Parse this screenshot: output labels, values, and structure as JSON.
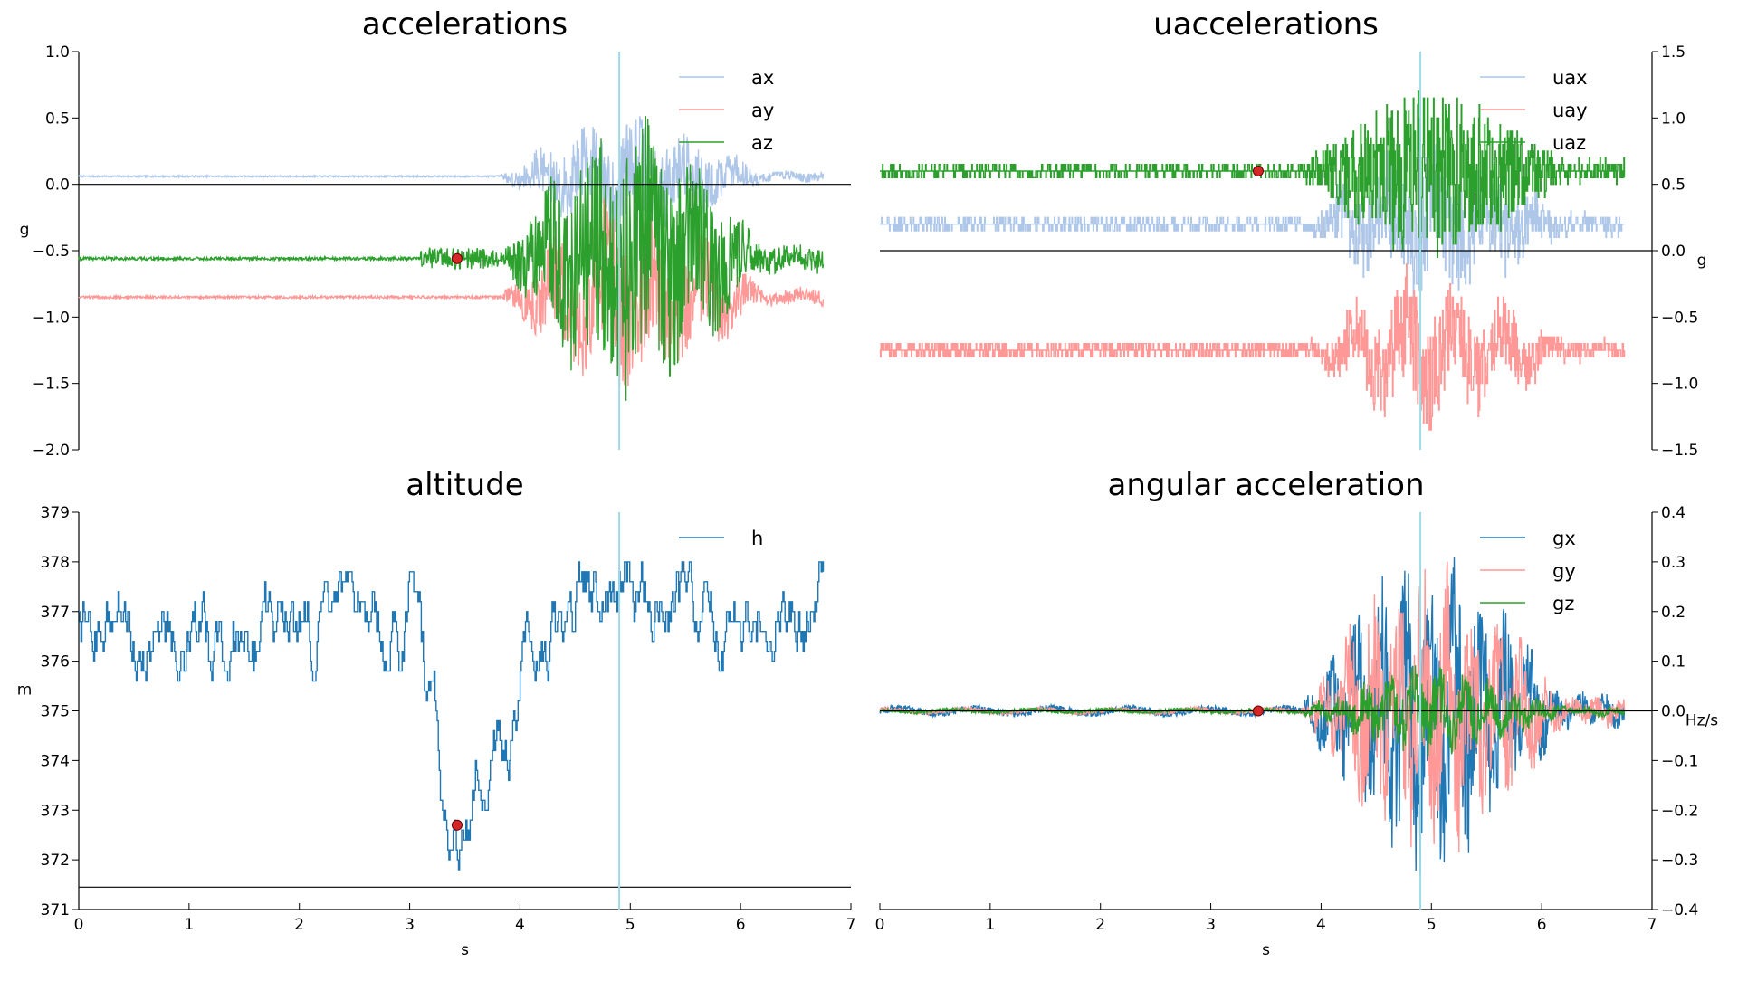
{
  "chart_data": [
    {
      "type": "line",
      "title": "accelerations",
      "xlabel": "",
      "ylabel": "g",
      "xlim": [
        0,
        7
      ],
      "ylim": [
        -2.0,
        1.0
      ],
      "yticks": [
        "1.0",
        "0.5",
        "0.0",
        "−0.5",
        "−1.0",
        "−1.5",
        "−2.0"
      ],
      "ytick_values": [
        1.0,
        0.5,
        0.0,
        -0.5,
        -1.0,
        -1.5,
        -2.0
      ],
      "show_xticklabels": false,
      "y_axis_side": "left",
      "legend": "top-right",
      "marker_point": {
        "x": 3.43,
        "y": -0.56
      },
      "vline_x": 4.9,
      "hline_y": 0.0,
      "series": [
        {
          "name": "ax",
          "color": "#aec7e8",
          "base": 0.06,
          "quiet_noise": 0.006,
          "active_amp": 0.35,
          "active_offset": 0.15
        },
        {
          "name": "ay",
          "color": "#ff9896",
          "base": -0.85,
          "quiet_noise": 0.01,
          "active_amp": 0.55,
          "active_offset": -0.25
        },
        {
          "name": "az",
          "color": "#2ca02c",
          "base": -0.56,
          "quiet_noise": 0.012,
          "active_amp": 0.9,
          "active_offset": -0.25
        }
      ]
    },
    {
      "type": "line",
      "title": "uaccelerations",
      "xlabel": "",
      "ylabel": "g",
      "xlim": [
        0,
        7
      ],
      "ylim": [
        -1.5,
        1.5
      ],
      "yticks": [
        "1.5",
        "1.0",
        "0.5",
        "0.0",
        "−0.5",
        "−1.0",
        "−1.5"
      ],
      "ytick_values": [
        1.5,
        1.0,
        0.5,
        0.0,
        -0.5,
        -1.0,
        -1.5
      ],
      "show_xticklabels": false,
      "y_axis_side": "right",
      "legend": "top-right",
      "marker_point": {
        "x": 3.43,
        "y": 0.6
      },
      "vline_x": 4.9,
      "hline_y": 0.0,
      "series": [
        {
          "name": "uax",
          "color": "#aec7e8",
          "base": 0.2,
          "quiet_noise": 0.04,
          "active_amp": 0.45,
          "active_offset": 0.2
        },
        {
          "name": "uay",
          "color": "#ff9896",
          "base": -0.75,
          "quiet_noise": 0.05,
          "active_amp": 0.4,
          "active_offset": -0.25
        },
        {
          "name": "uaz",
          "color": "#2ca02c",
          "base": 0.6,
          "quiet_noise": 0.04,
          "active_amp": 0.6,
          "active_offset": 0.05
        }
      ]
    },
    {
      "type": "line",
      "title": "altitude",
      "xlabel": "s",
      "ylabel": "m",
      "xlim": [
        0,
        7
      ],
      "ylim": [
        371,
        379
      ],
      "yticks": [
        "379",
        "378",
        "377",
        "376",
        "375",
        "374",
        "373",
        "372",
        "371"
      ],
      "ytick_values": [
        379,
        378,
        377,
        376,
        375,
        374,
        373,
        372,
        371
      ],
      "xticks": [
        "0",
        "1",
        "2",
        "3",
        "4",
        "5",
        "6",
        "7"
      ],
      "xtick_values": [
        0,
        1,
        2,
        3,
        4,
        5,
        6,
        7
      ],
      "show_xticklabels": true,
      "y_axis_side": "left",
      "legend": "top-right",
      "marker_point": {
        "x": 3.43,
        "y": 372.7
      },
      "vline_x": 4.9,
      "hline_y": 371.45,
      "series": [
        {
          "name": "h",
          "color": "#1f77b4"
        }
      ]
    },
    {
      "type": "line",
      "title": "angular acceleration",
      "xlabel": "s",
      "ylabel": "Hz/s",
      "xlim": [
        0,
        7
      ],
      "ylim": [
        -0.4,
        0.4
      ],
      "yticks": [
        "0.4",
        "0.3",
        "0.2",
        "0.1",
        "0.0",
        "−0.1",
        "−0.2",
        "−0.3",
        "−0.4"
      ],
      "ytick_values": [
        0.4,
        0.3,
        0.2,
        0.1,
        0.0,
        -0.1,
        -0.2,
        -0.3,
        -0.4
      ],
      "xticks": [
        "0",
        "1",
        "2",
        "3",
        "4",
        "5",
        "6",
        "7"
      ],
      "xtick_values": [
        0,
        1,
        2,
        3,
        4,
        5,
        6,
        7
      ],
      "show_xticklabels": true,
      "y_axis_side": "right",
      "legend": "top-right",
      "marker_point": {
        "x": 3.43,
        "y": 0.0
      },
      "vline_x": 4.9,
      "hline_y": 0.0,
      "series": [
        {
          "name": "gx",
          "color": "#1f77b4",
          "quiet_noise": 0.006,
          "active_amp": 0.22
        },
        {
          "name": "gy",
          "color": "#ff9896",
          "quiet_noise": 0.004,
          "active_amp": 0.2
        },
        {
          "name": "gz",
          "color": "#2ca02c",
          "quiet_noise": 0.003,
          "active_amp": 0.06
        }
      ]
    }
  ]
}
